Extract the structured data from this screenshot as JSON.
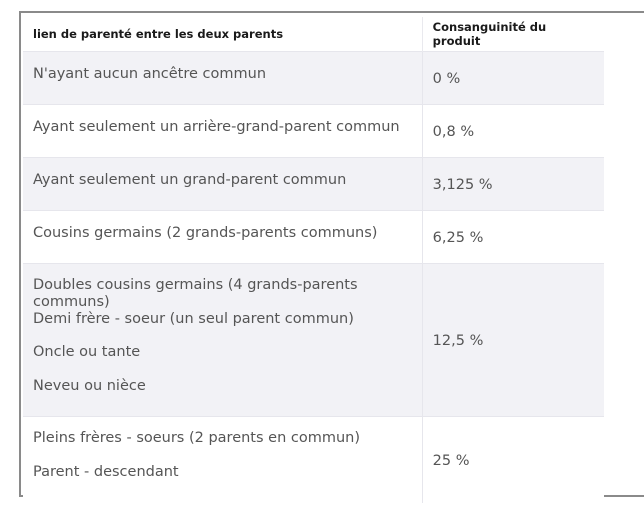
{
  "table": {
    "headers": {
      "relation": "lien de parenté entre les deux parents",
      "consanguinity": "Consanguinité du produit"
    },
    "rows": [
      {
        "relations": [
          "N'ayant aucun ancêtre commun"
        ],
        "value": "0 %"
      },
      {
        "relations": [
          "Ayant seulement un arrière-grand-parent commun"
        ],
        "value": "0,8 %"
      },
      {
        "relations": [
          "Ayant seulement un grand-parent commun"
        ],
        "value": "3,125 %"
      },
      {
        "relations": [
          "Cousins germains (2 grands-parents communs)"
        ],
        "value": "6,25 %"
      },
      {
        "relations": [
          "Doubles cousins germains (4 grands-parents communs)",
          "Demi frère - soeur (un seul parent commun)",
          "Oncle ou tante",
          "Neveu ou nièce"
        ],
        "value": "12,5 %"
      },
      {
        "relations": [
          "Pleins frères - soeurs (2 parents en commun)",
          "Parent - descendant"
        ],
        "value": "25 %"
      }
    ]
  }
}
